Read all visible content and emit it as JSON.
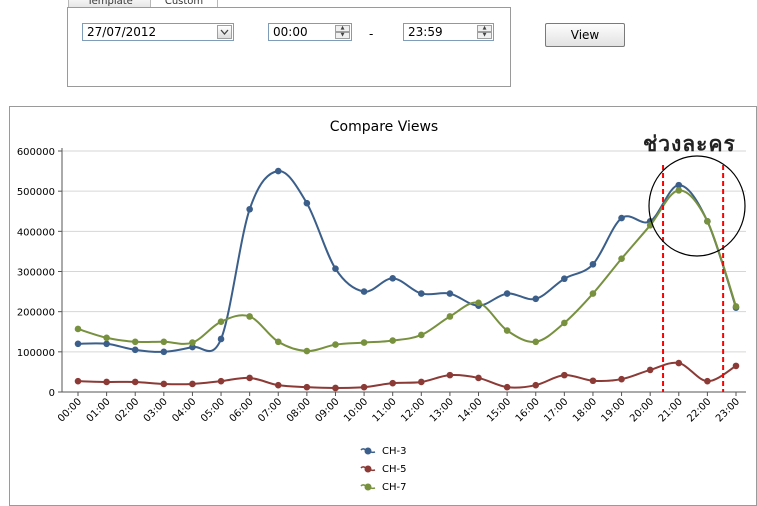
{
  "tabs": [
    {
      "label": "Template",
      "active": false
    },
    {
      "label": "Custom",
      "active": true
    }
  ],
  "filters": {
    "date": "27/07/2012",
    "start_time": "00:00",
    "separator": "-",
    "end_time": "23:59",
    "view_label": "View"
  },
  "annotation": {
    "text": "ช่วงละคร",
    "marker_color": "#ff0000",
    "marked_categories": [
      "20:00",
      "23:00"
    ]
  },
  "chart_data": {
    "type": "line",
    "title": "Compare Views",
    "xlabel": "",
    "ylabel": "",
    "ylim": [
      0,
      600000
    ],
    "yticks": [
      0,
      100000,
      200000,
      300000,
      400000,
      500000,
      600000
    ],
    "grid": true,
    "legend_position": "bottom-center",
    "categories": [
      "00:00",
      "01:00",
      "02:00",
      "03:00",
      "04:00",
      "05:00",
      "06:00",
      "07:00",
      "08:00",
      "09:00",
      "10:00",
      "11:00",
      "12:00",
      "13:00",
      "14:00",
      "15:00",
      "16:00",
      "17:00",
      "18:00",
      "19:00",
      "20:00",
      "21:00",
      "22:00",
      "23:00"
    ],
    "series": [
      {
        "name": "CH-3",
        "color": "#3b5f8a",
        "values": [
          120000,
          120000,
          105000,
          100000,
          112000,
          132000,
          455000,
          550000,
          470000,
          307000,
          250000,
          283000,
          245000,
          245000,
          215000,
          245000,
          232000,
          282000,
          318000,
          433000,
          425000,
          515000,
          425000,
          210000
        ]
      },
      {
        "name": "CH-5",
        "color": "#8b3a36",
        "values": [
          27000,
          25000,
          25000,
          20000,
          20000,
          27000,
          35000,
          17000,
          12000,
          10000,
          12000,
          22000,
          25000,
          42000,
          35000,
          12000,
          17000,
          42000,
          28000,
          32000,
          55000,
          72000,
          27000,
          65000
        ]
      },
      {
        "name": "CH-7",
        "color": "#77913f",
        "values": [
          157000,
          135000,
          125000,
          125000,
          123000,
          175000,
          188000,
          125000,
          102000,
          118000,
          123000,
          128000,
          142000,
          188000,
          222000,
          153000,
          125000,
          172000,
          245000,
          332000,
          415000,
          502000,
          425000,
          213000
        ]
      }
    ]
  }
}
